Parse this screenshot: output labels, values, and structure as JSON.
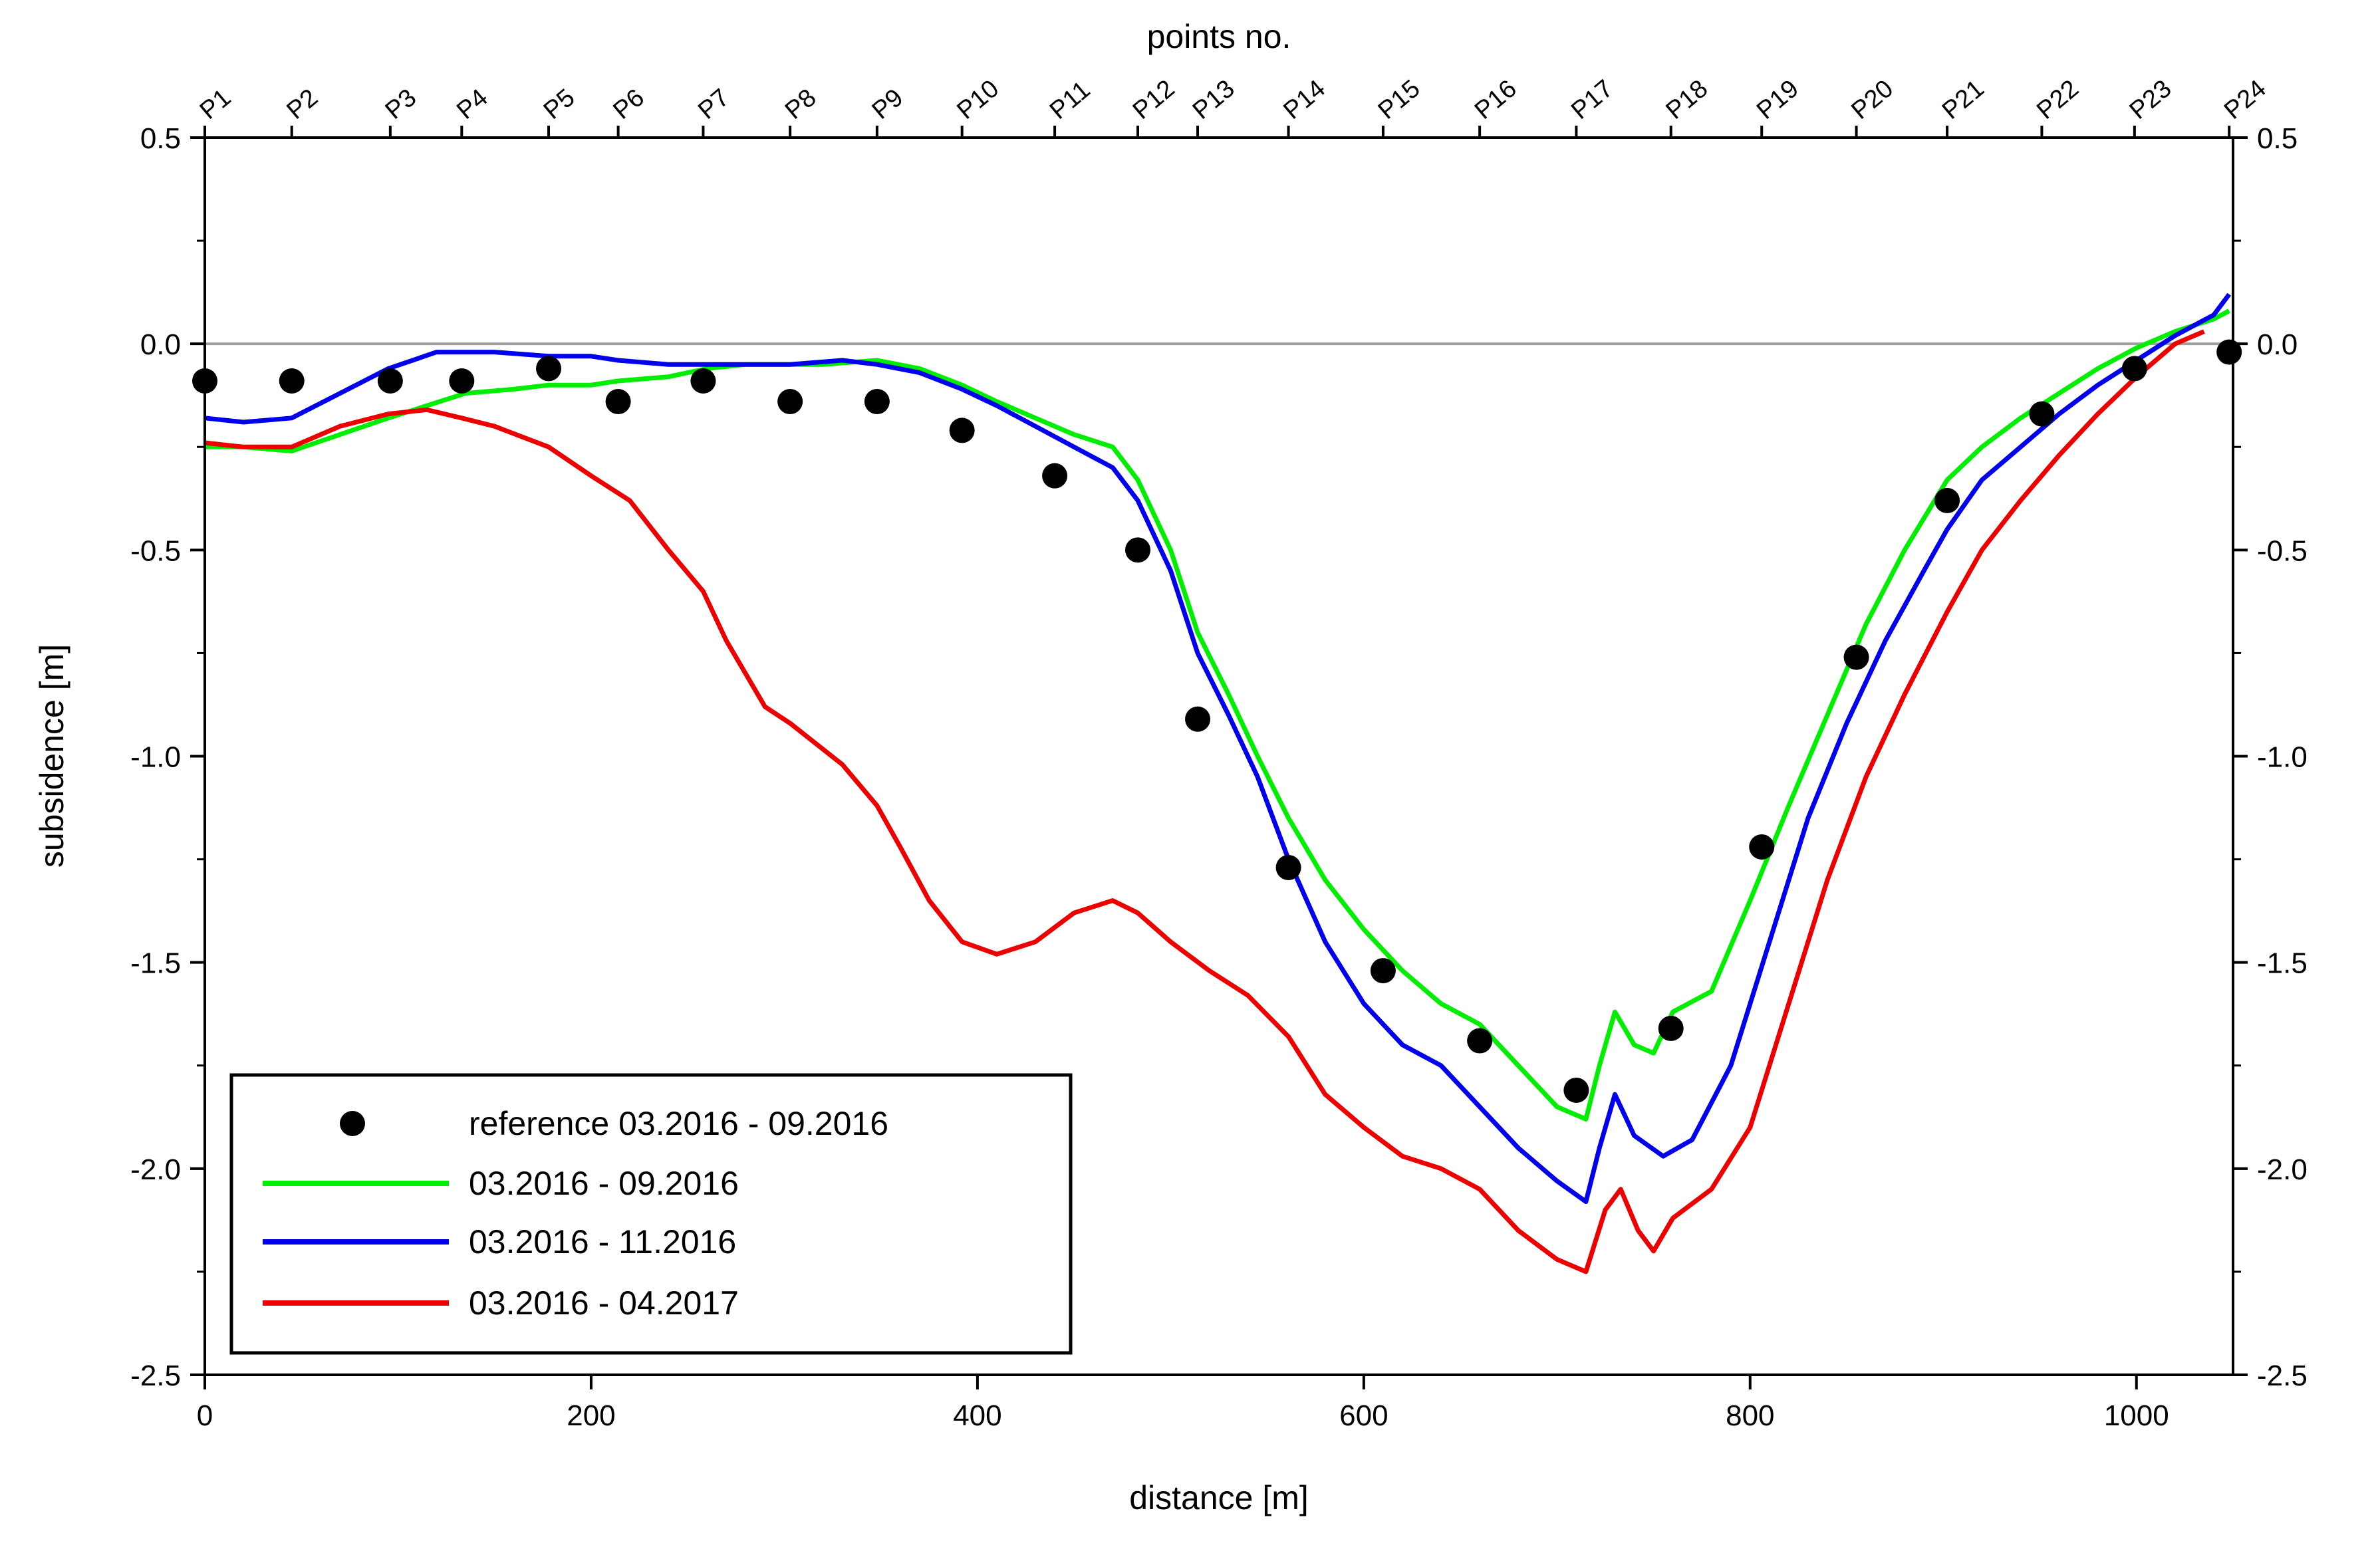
{
  "chart_data": {
    "type": "line",
    "top_title": "points no.",
    "xlabel": "distance [m]",
    "ylabel": "subsidence [m]",
    "xlim": [
      0,
      1050
    ],
    "ylim": [
      -2.5,
      0.5
    ],
    "x_ticks": [
      0,
      200,
      400,
      600,
      800,
      1000
    ],
    "x_tick_labels": [
      "0",
      "200",
      "400",
      "600",
      "800",
      "1000"
    ],
    "y_ticks": [
      0.5,
      0.0,
      -0.5,
      -1.0,
      -1.5,
      -2.0,
      -2.5
    ],
    "y_tick_labels": [
      "0.5",
      "0.0",
      "-0.5",
      "-1.0",
      "-1.5",
      "-2.0",
      "-2.5"
    ],
    "zero_line": true,
    "top_points": [
      {
        "name": "P1",
        "x": 0
      },
      {
        "name": "P2",
        "x": 45
      },
      {
        "name": "P3",
        "x": 96
      },
      {
        "name": "P4",
        "x": 133
      },
      {
        "name": "P5",
        "x": 178
      },
      {
        "name": "P6",
        "x": 214
      },
      {
        "name": "P7",
        "x": 258
      },
      {
        "name": "P8",
        "x": 303
      },
      {
        "name": "P9",
        "x": 348
      },
      {
        "name": "P10",
        "x": 392
      },
      {
        "name": "P11",
        "x": 440
      },
      {
        "name": "P12",
        "x": 483
      },
      {
        "name": "P13",
        "x": 514
      },
      {
        "name": "P14",
        "x": 561
      },
      {
        "name": "P15",
        "x": 610
      },
      {
        "name": "P16",
        "x": 660
      },
      {
        "name": "P17",
        "x": 710
      },
      {
        "name": "P18",
        "x": 759
      },
      {
        "name": "P19",
        "x": 806
      },
      {
        "name": "P20",
        "x": 855
      },
      {
        "name": "P21",
        "x": 902
      },
      {
        "name": "P22",
        "x": 951
      },
      {
        "name": "P23",
        "x": 999
      },
      {
        "name": "P24",
        "x": 1048
      }
    ],
    "reference": {
      "name": "reference 03.2016 - 09.2016",
      "color": "#000000",
      "points": [
        [
          0,
          -0.09
        ],
        [
          45,
          -0.09
        ],
        [
          96,
          -0.09
        ],
        [
          133,
          -0.09
        ],
        [
          178,
          -0.06
        ],
        [
          214,
          -0.14
        ],
        [
          258,
          -0.09
        ],
        [
          303,
          -0.14
        ],
        [
          348,
          -0.14
        ],
        [
          392,
          -0.21
        ],
        [
          440,
          -0.32
        ],
        [
          483,
          -0.5
        ],
        [
          514,
          -0.91
        ],
        [
          561,
          -1.27
        ],
        [
          610,
          -1.52
        ],
        [
          660,
          -1.69
        ],
        [
          710,
          -1.81
        ],
        [
          759,
          -1.66
        ],
        [
          806,
          -1.22
        ],
        [
          855,
          -0.76
        ],
        [
          902,
          -0.38
        ],
        [
          951,
          -0.17
        ],
        [
          999,
          -0.06
        ],
        [
          1048,
          -0.02
        ]
      ]
    },
    "series": [
      {
        "name": "03.2016 - 09.2016",
        "color": "#00ee00",
        "points": [
          [
            0,
            -0.25
          ],
          [
            20,
            -0.25
          ],
          [
            45,
            -0.26
          ],
          [
            70,
            -0.22
          ],
          [
            95,
            -0.18
          ],
          [
            115,
            -0.15
          ],
          [
            135,
            -0.12
          ],
          [
            160,
            -0.11
          ],
          [
            178,
            -0.1
          ],
          [
            200,
            -0.1
          ],
          [
            214,
            -0.09
          ],
          [
            240,
            -0.08
          ],
          [
            260,
            -0.06
          ],
          [
            280,
            -0.05
          ],
          [
            303,
            -0.05
          ],
          [
            320,
            -0.05
          ],
          [
            348,
            -0.04
          ],
          [
            370,
            -0.06
          ],
          [
            392,
            -0.1
          ],
          [
            410,
            -0.14
          ],
          [
            430,
            -0.18
          ],
          [
            450,
            -0.22
          ],
          [
            470,
            -0.25
          ],
          [
            483,
            -0.33
          ],
          [
            500,
            -0.5
          ],
          [
            514,
            -0.7
          ],
          [
            530,
            -0.85
          ],
          [
            545,
            -1.0
          ],
          [
            561,
            -1.15
          ],
          [
            580,
            -1.3
          ],
          [
            600,
            -1.42
          ],
          [
            620,
            -1.52
          ],
          [
            640,
            -1.6
          ],
          [
            660,
            -1.65
          ],
          [
            680,
            -1.75
          ],
          [
            700,
            -1.85
          ],
          [
            715,
            -1.88
          ],
          [
            722,
            -1.75
          ],
          [
            730,
            -1.62
          ],
          [
            740,
            -1.7
          ],
          [
            750,
            -1.72
          ],
          [
            760,
            -1.62
          ],
          [
            780,
            -1.57
          ],
          [
            800,
            -1.35
          ],
          [
            820,
            -1.12
          ],
          [
            840,
            -0.9
          ],
          [
            860,
            -0.68
          ],
          [
            880,
            -0.5
          ],
          [
            902,
            -0.33
          ],
          [
            920,
            -0.25
          ],
          [
            940,
            -0.18
          ],
          [
            960,
            -0.12
          ],
          [
            980,
            -0.06
          ],
          [
            1000,
            -0.01
          ],
          [
            1020,
            0.03
          ],
          [
            1040,
            0.06
          ],
          [
            1048,
            0.08
          ]
        ]
      },
      {
        "name": "03.2016 - 11.2016",
        "color": "#0000ee",
        "points": [
          [
            0,
            -0.18
          ],
          [
            20,
            -0.19
          ],
          [
            45,
            -0.18
          ],
          [
            70,
            -0.12
          ],
          [
            95,
            -0.06
          ],
          [
            120,
            -0.02
          ],
          [
            150,
            -0.02
          ],
          [
            178,
            -0.03
          ],
          [
            200,
            -0.03
          ],
          [
            214,
            -0.04
          ],
          [
            240,
            -0.05
          ],
          [
            270,
            -0.05
          ],
          [
            303,
            -0.05
          ],
          [
            330,
            -0.04
          ],
          [
            348,
            -0.05
          ],
          [
            370,
            -0.07
          ],
          [
            392,
            -0.11
          ],
          [
            410,
            -0.15
          ],
          [
            430,
            -0.2
          ],
          [
            450,
            -0.25
          ],
          [
            470,
            -0.3
          ],
          [
            483,
            -0.38
          ],
          [
            500,
            -0.55
          ],
          [
            514,
            -0.75
          ],
          [
            530,
            -0.9
          ],
          [
            545,
            -1.05
          ],
          [
            561,
            -1.25
          ],
          [
            580,
            -1.45
          ],
          [
            600,
            -1.6
          ],
          [
            620,
            -1.7
          ],
          [
            640,
            -1.75
          ],
          [
            660,
            -1.85
          ],
          [
            680,
            -1.95
          ],
          [
            700,
            -2.03
          ],
          [
            715,
            -2.08
          ],
          [
            722,
            -1.95
          ],
          [
            730,
            -1.82
          ],
          [
            740,
            -1.92
          ],
          [
            755,
            -1.97
          ],
          [
            770,
            -1.93
          ],
          [
            790,
            -1.75
          ],
          [
            810,
            -1.45
          ],
          [
            830,
            -1.15
          ],
          [
            850,
            -0.92
          ],
          [
            870,
            -0.72
          ],
          [
            890,
            -0.55
          ],
          [
            902,
            -0.45
          ],
          [
            920,
            -0.33
          ],
          [
            940,
            -0.25
          ],
          [
            960,
            -0.17
          ],
          [
            980,
            -0.1
          ],
          [
            1000,
            -0.04
          ],
          [
            1020,
            0.02
          ],
          [
            1040,
            0.07
          ],
          [
            1048,
            0.12
          ]
        ]
      },
      {
        "name": "03.2016 - 04.2017",
        "color": "#ee0000",
        "points": [
          [
            0,
            -0.24
          ],
          [
            20,
            -0.25
          ],
          [
            45,
            -0.25
          ],
          [
            70,
            -0.2
          ],
          [
            95,
            -0.17
          ],
          [
            115,
            -0.16
          ],
          [
            133,
            -0.18
          ],
          [
            150,
            -0.2
          ],
          [
            178,
            -0.25
          ],
          [
            200,
            -0.32
          ],
          [
            220,
            -0.38
          ],
          [
            240,
            -0.5
          ],
          [
            258,
            -0.6
          ],
          [
            270,
            -0.72
          ],
          [
            290,
            -0.88
          ],
          [
            303,
            -0.92
          ],
          [
            330,
            -1.02
          ],
          [
            348,
            -1.12
          ],
          [
            360,
            -1.22
          ],
          [
            375,
            -1.35
          ],
          [
            392,
            -1.45
          ],
          [
            410,
            -1.48
          ],
          [
            430,
            -1.45
          ],
          [
            450,
            -1.38
          ],
          [
            470,
            -1.35
          ],
          [
            483,
            -1.38
          ],
          [
            500,
            -1.45
          ],
          [
            520,
            -1.52
          ],
          [
            540,
            -1.58
          ],
          [
            561,
            -1.68
          ],
          [
            580,
            -1.82
          ],
          [
            600,
            -1.9
          ],
          [
            620,
            -1.97
          ],
          [
            640,
            -2.0
          ],
          [
            660,
            -2.05
          ],
          [
            680,
            -2.15
          ],
          [
            700,
            -2.22
          ],
          [
            715,
            -2.25
          ],
          [
            725,
            -2.1
          ],
          [
            733,
            -2.05
          ],
          [
            742,
            -2.15
          ],
          [
            750,
            -2.2
          ],
          [
            760,
            -2.12
          ],
          [
            780,
            -2.05
          ],
          [
            800,
            -1.9
          ],
          [
            820,
            -1.6
          ],
          [
            840,
            -1.3
          ],
          [
            860,
            -1.05
          ],
          [
            880,
            -0.85
          ],
          [
            902,
            -0.65
          ],
          [
            920,
            -0.5
          ],
          [
            940,
            -0.38
          ],
          [
            960,
            -0.27
          ],
          [
            980,
            -0.17
          ],
          [
            1000,
            -0.08
          ],
          [
            1020,
            0.0
          ],
          [
            1035,
            0.03
          ]
        ]
      }
    ],
    "legend": {
      "placement": "bottom-left",
      "entries": [
        {
          "label": "reference 03.2016 - 09.2016",
          "marker": "dot",
          "color": "#000000"
        },
        {
          "label": "03.2016 - 09.2016",
          "marker": "line",
          "color": "#00ee00"
        },
        {
          "label": "03.2016 - 11.2016",
          "marker": "line",
          "color": "#0000ee"
        },
        {
          "label": "03.2016 - 04.2017",
          "marker": "line",
          "color": "#ee0000"
        }
      ]
    }
  }
}
